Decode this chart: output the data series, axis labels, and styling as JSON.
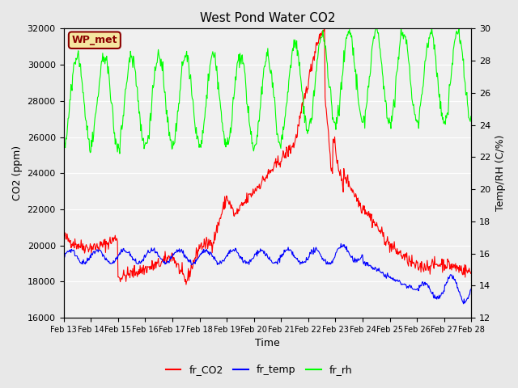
{
  "title": "West Pond Water CO2",
  "xlabel": "Time",
  "ylabel_left": "CO2 (ppm)",
  "ylabel_right": "Temp/RH (C/%)",
  "annotation": "WP_met",
  "x_tick_labels": [
    "Feb 13",
    "Feb 14",
    "Feb 15",
    "Feb 16",
    "Feb 17",
    "Feb 18",
    "Feb 19",
    "Feb 20",
    "Feb 21",
    "Feb 22",
    "Feb 23",
    "Feb 24",
    "Feb 25",
    "Feb 26",
    "Feb 27",
    "Feb 28"
  ],
  "co2_ylim": [
    16000,
    32000
  ],
  "rh_ylim": [
    12,
    30
  ],
  "co2_yticks": [
    16000,
    18000,
    20000,
    22000,
    24000,
    26000,
    28000,
    30000,
    32000
  ],
  "rh_yticks": [
    12,
    14,
    16,
    18,
    20,
    22,
    24,
    26,
    28,
    30
  ],
  "legend_labels": [
    "fr_CO2",
    "fr_temp",
    "fr_rh"
  ],
  "legend_colors": [
    "red",
    "blue",
    "lime"
  ],
  "bg_color": "#e8e8e8",
  "plot_bg_color": "#f0f0f0",
  "annotation_bg": "#f5e6a0",
  "annotation_border": "#8B0000"
}
